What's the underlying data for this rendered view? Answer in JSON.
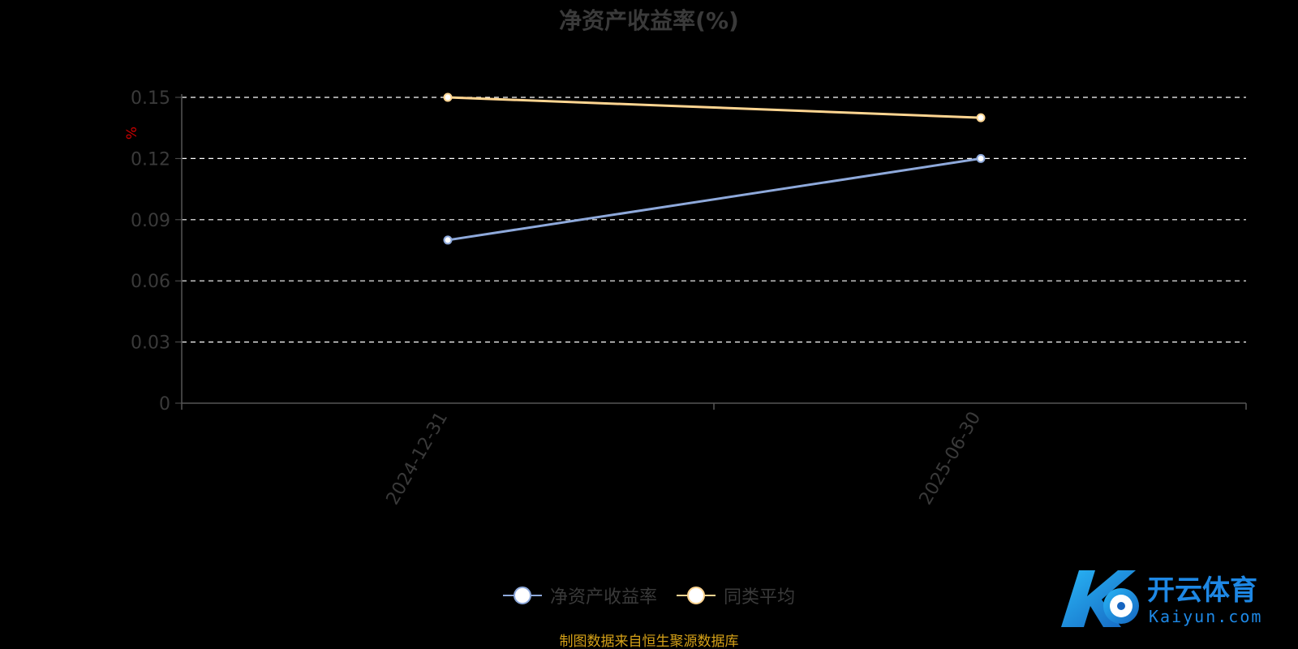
{
  "chart_title": "净资产收益率(%)",
  "footer_text": "制图数据来自恒生聚源数据库",
  "watermark": {
    "brand_cn": "开云体育",
    "brand_en": "Kaiyun.com"
  },
  "colors": {
    "background": "#000000",
    "axis": "#555555",
    "grid": "#ffffff",
    "tick_text": "#3a3a3a",
    "unit_text": "#cc0000",
    "footer": "#d4a017",
    "series_roe": "#8ea9db",
    "series_avg": "#ffd591"
  },
  "chart_data": {
    "type": "line",
    "title": "净资产收益率(%)",
    "ylabel": "%",
    "x": [
      "2024-12-31",
      "2025-06-30"
    ],
    "series": [
      {
        "name": "净资产收益率",
        "values": [
          0.08,
          0.12
        ]
      },
      {
        "name": "同类平均",
        "values": [
          0.15,
          0.14
        ]
      }
    ],
    "y_ticks": [
      "0",
      "0.03",
      "0.06",
      "0.09",
      "0.12",
      "0.15"
    ],
    "ylim": [
      0,
      0.15
    ],
    "grid": true,
    "legend_position": "bottom-center"
  },
  "legend": [
    {
      "name": "净资产收益率",
      "color": "#8ea9db"
    },
    {
      "name": "同类平均",
      "color": "#ffd591"
    }
  ]
}
